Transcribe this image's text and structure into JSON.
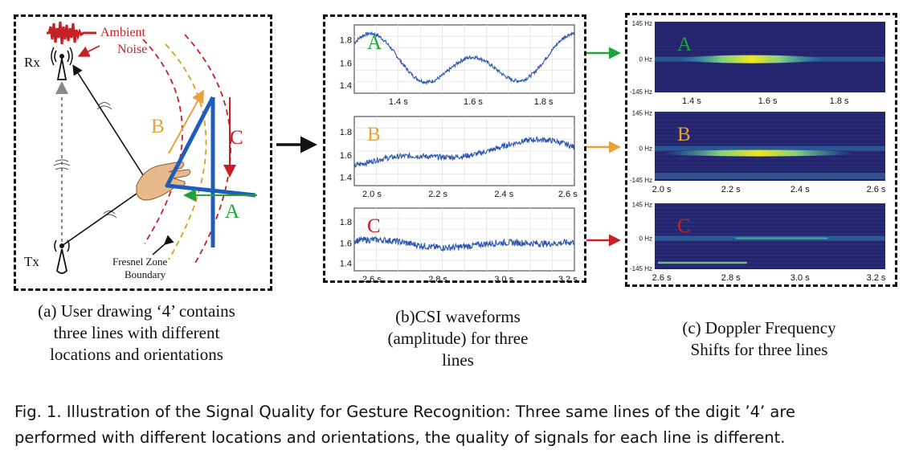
{
  "panel_a": {
    "ambient": "Ambient",
    "noise": "Noise",
    "rx": "Rx",
    "tx": "Tx",
    "line_a": "A",
    "line_b": "B",
    "line_c": "C",
    "fresnel1": "Fresnel Zone",
    "fresnel2": "Boundary"
  },
  "caption_a": [
    "(a) User drawing ‘4’ contains",
    "three lines with different",
    "locations and orientations"
  ],
  "caption_b": [
    "(b)CSI waveforms",
    "(amplitude) for three",
    "lines"
  ],
  "caption_c": [
    "(c) Doppler Frequency",
    "Shifts for three lines"
  ],
  "figure_caption": [
    "Fig. 1.  Illustration of the Signal Quality for Gesture Recognition: Three same lines of the digit ’4’ are",
    "performed with different locations and orientations, the quality of signals for each line is different."
  ],
  "colors": {
    "a": "#22a23a",
    "b": "#e8a23a",
    "c": "#c62026",
    "wave": "#2c56b0",
    "stroke4": "#1f5db8"
  },
  "csi_plots": [
    {
      "label": "A",
      "color": "#22a23a",
      "yticks": [
        "1.8",
        "1.6",
        "1.4"
      ],
      "xticks": [
        "1.4 s",
        "1.6 s",
        "1.8 s"
      ]
    },
    {
      "label": "B",
      "color": "#e8a23a",
      "yticks": [
        "1.8",
        "1.6",
        "1.4"
      ],
      "xticks": [
        "2.0 s",
        "2.2 s",
        "2.4 s",
        "2.6 s"
      ]
    },
    {
      "label": "C",
      "color": "#c62026",
      "yticks": [
        "1.8",
        "1.6",
        "1.4"
      ],
      "xticks": [
        "2.6 s",
        "2.8 s",
        "3.0 s",
        "3.2 s"
      ]
    }
  ],
  "doppler_plots": [
    {
      "label": "A",
      "color": "#22a23a",
      "yticks": [
        "145 Hz",
        "0 Hz",
        "-145 Hz"
      ],
      "xticks": [
        "1.4 s",
        "1.6 s",
        "1.8 s"
      ]
    },
    {
      "label": "B",
      "color": "#e8a23a",
      "yticks": [
        "145 Hz",
        "0 Hz",
        "-145 Hz"
      ],
      "xticks": [
        "2.0 s",
        "2.2 s",
        "2.4 s",
        "2.6 s"
      ]
    },
    {
      "label": "C",
      "color": "#c62026",
      "yticks": [
        "145 Hz",
        "0 Hz",
        "-145 Hz"
      ],
      "xticks": [
        "2.6 s",
        "2.8 s",
        "3.0 s",
        "3.2 s"
      ]
    }
  ]
}
